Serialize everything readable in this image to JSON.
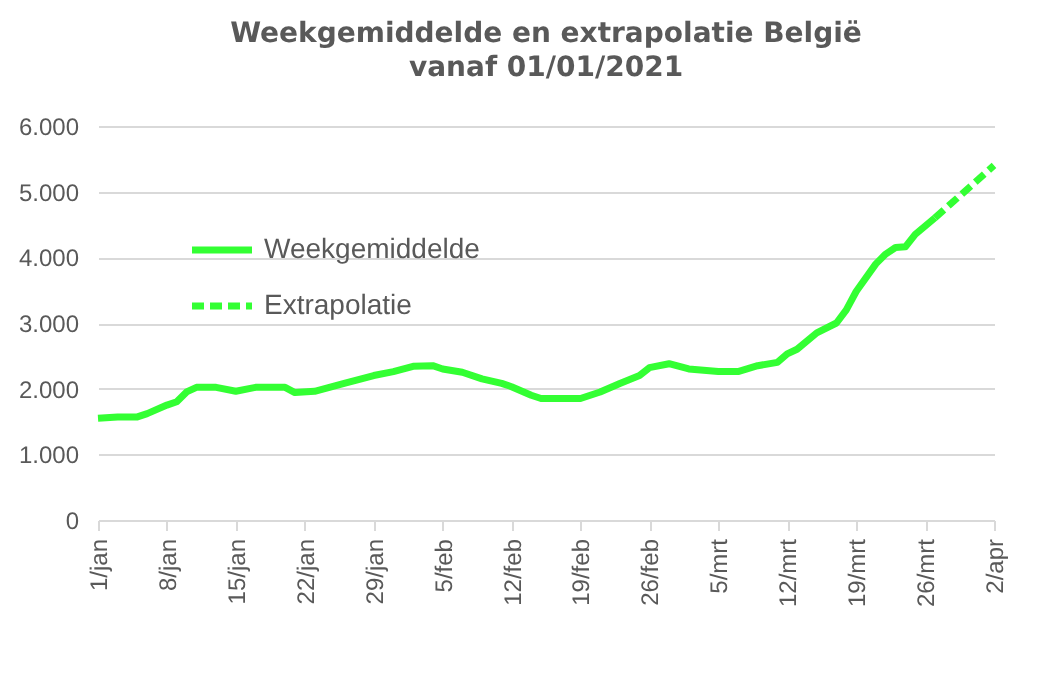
{
  "chart_data": {
    "type": "line",
    "title": "Weekgemiddelde en extrapolatie België",
    "subtitle": "vanaf 01/01/2021",
    "ylim": [
      0,
      6000
    ],
    "yticks": [
      0,
      {
        "value": 1000,
        "label": "1.000"
      },
      {
        "value": 2000,
        "label": "2.000"
      },
      {
        "value": 3000,
        "label": "3.000"
      },
      {
        "value": 4000,
        "label": "4.000"
      },
      {
        "value": 5000,
        "label": "5.000"
      },
      {
        "value": 6000,
        "label": "6.000"
      }
    ],
    "xlim": [
      "2021-01-01",
      "2021-04-02"
    ],
    "xticks": [
      {
        "value": "2021-01-01",
        "label": "1/jan"
      },
      {
        "value": "2021-01-08",
        "label": "8/jan"
      },
      {
        "value": "2021-01-15",
        "label": "15/jan"
      },
      {
        "value": "2021-01-22",
        "label": "22/jan"
      },
      {
        "value": "2021-01-29",
        "label": "29/jan"
      },
      {
        "value": "2021-02-05",
        "label": "5/feb"
      },
      {
        "value": "2021-02-12",
        "label": "12/feb"
      },
      {
        "value": "2021-02-19",
        "label": "19/feb"
      },
      {
        "value": "2021-02-26",
        "label": "26/feb"
      },
      {
        "value": "2021-03-05",
        "label": "5/mrt"
      },
      {
        "value": "2021-03-12",
        "label": "12/mrt"
      },
      {
        "value": "2021-03-19",
        "label": "19/mrt"
      },
      {
        "value": "2021-03-26",
        "label": "26/mrt"
      },
      {
        "value": "2021-04-02",
        "label": "2/apr"
      }
    ],
    "grid": "y",
    "legend": "top left",
    "marker": "none",
    "series": [
      {
        "name": "Weekgemiddelde",
        "color": "#33ff33",
        "line_style": "solid",
        "x": [
          "2021-01-01",
          "2021-01-03",
          "2021-01-05",
          "2021-01-06",
          "2021-01-08",
          "2021-01-09",
          "2021-01-10",
          "2021-01-11",
          "2021-01-13",
          "2021-01-15",
          "2021-01-17",
          "2021-01-20",
          "2021-01-21",
          "2021-01-23",
          "2021-01-26",
          "2021-01-29",
          "2021-01-31",
          "2021-02-02",
          "2021-02-04",
          "2021-02-05",
          "2021-02-07",
          "2021-02-09",
          "2021-02-11",
          "2021-02-12",
          "2021-02-14",
          "2021-02-15",
          "2021-02-19",
          "2021-02-21",
          "2021-02-23",
          "2021-02-25",
          "2021-02-26",
          "2021-02-28",
          "2021-03-02",
          "2021-03-05",
          "2021-03-07",
          "2021-03-09",
          "2021-03-11",
          "2021-03-12",
          "2021-03-13",
          "2021-03-15",
          "2021-03-17",
          "2021-03-18",
          "2021-03-19",
          "2021-03-21",
          "2021-03-22",
          "2021-03-23",
          "2021-03-24",
          "2021-03-25",
          "2021-03-27"
        ],
        "values": [
          1550,
          1570,
          1570,
          1620,
          1750,
          1800,
          1950,
          2020,
          2020,
          1960,
          2020,
          2020,
          1940,
          1960,
          2080,
          2200,
          2260,
          2340,
          2350,
          2300,
          2250,
          2150,
          2080,
          2030,
          1900,
          1850,
          1850,
          1950,
          2080,
          2200,
          2320,
          2380,
          2300,
          2260,
          2260,
          2350,
          2400,
          2530,
          2600,
          2850,
          3000,
          3200,
          3480,
          3900,
          4050,
          4150,
          4160,
          4350,
          4600
        ]
      },
      {
        "name": "Extrapolatie",
        "color": "#33ff33",
        "line_style": "dashed",
        "x": [
          "2021-03-27",
          "2021-04-02"
        ],
        "values": [
          4600,
          5400
        ]
      }
    ]
  }
}
